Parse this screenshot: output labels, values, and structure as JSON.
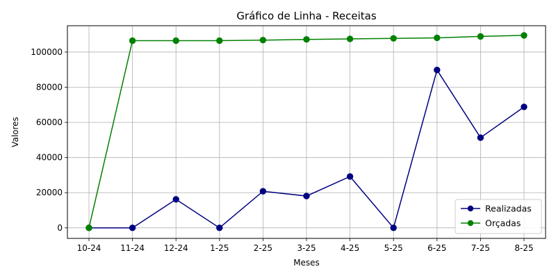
{
  "chart_data": {
    "type": "line",
    "title": "Gráfico de Linha - Receitas",
    "xlabel": "Meses",
    "ylabel": "Valores",
    "categories": [
      "10-24",
      "11-24",
      "12-24",
      "1-25",
      "2-25",
      "3-25",
      "4-25",
      "5-25",
      "6-25",
      "7-25",
      "8-25"
    ],
    "ylim": [
      -6000,
      115000
    ],
    "yticks": [
      0,
      20000,
      40000,
      60000,
      80000,
      100000
    ],
    "grid": true,
    "legend_position": "bottom-right",
    "series": [
      {
        "name": "Realizadas",
        "color": "#000080",
        "values": [
          0,
          0,
          16200,
          0,
          20800,
          18100,
          29200,
          0,
          89800,
          51300,
          68800
        ]
      },
      {
        "name": "Orçadas",
        "color": "#008000",
        "values": [
          0,
          106500,
          106500,
          106500,
          106800,
          107200,
          107500,
          107800,
          108100,
          108900,
          109500
        ]
      }
    ]
  }
}
